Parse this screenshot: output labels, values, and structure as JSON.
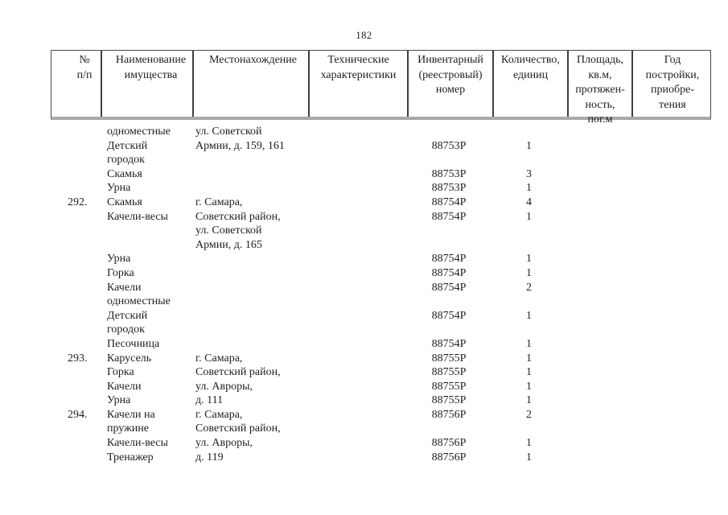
{
  "page": {
    "number": "182"
  },
  "colors": {
    "background": "#ffffff",
    "text": "#1f1f1f",
    "border_thin": "#3f3f3f",
    "border_thick": "#a9a9a9"
  },
  "table": {
    "columns": [
      {
        "id": "num",
        "label": "№\nп/п"
      },
      {
        "id": "name",
        "label": "Наименование\nимущества"
      },
      {
        "id": "location",
        "label": "Местонахождение"
      },
      {
        "id": "tech",
        "label": "Технические\nхарактеристики"
      },
      {
        "id": "inventory",
        "label": "Инвентарный\n(реестровый)\nномер"
      },
      {
        "id": "qty",
        "label": "Количество,\nединиц"
      },
      {
        "id": "area",
        "label": "Площадь,\nкв.м,\nпротяжен-\nность,\nпог.м"
      },
      {
        "id": "year",
        "label": "Год\nпостройки,\nприобре-\nтения"
      }
    ],
    "rows": [
      {
        "num": "",
        "name": "одноместные",
        "location": "ул. Советской",
        "tech": "",
        "inventory": "",
        "qty": "",
        "area": "",
        "year": ""
      },
      {
        "num": "",
        "name": "Детский",
        "location": "Армии, д. 159, 161",
        "tech": "",
        "inventory": "88753Р",
        "qty": "1",
        "area": "",
        "year": ""
      },
      {
        "num": "",
        "name": "городок",
        "location": "",
        "tech": "",
        "inventory": "",
        "qty": "",
        "area": "",
        "year": ""
      },
      {
        "num": "",
        "name": "Скамья",
        "location": "",
        "tech": "",
        "inventory": "88753Р",
        "qty": "3",
        "area": "",
        "year": ""
      },
      {
        "num": "",
        "name": "Урна",
        "location": "",
        "tech": "",
        "inventory": "88753Р",
        "qty": "1",
        "area": "",
        "year": ""
      },
      {
        "num": "292.",
        "name": "Скамья",
        "location": "г. Самара,",
        "tech": "",
        "inventory": "88754Р",
        "qty": "4",
        "area": "",
        "year": ""
      },
      {
        "num": "",
        "name": "Качели-весы",
        "location": "Советский район,",
        "tech": "",
        "inventory": "88754Р",
        "qty": "1",
        "area": "",
        "year": ""
      },
      {
        "num": "",
        "name": "",
        "location": "ул. Советской",
        "tech": "",
        "inventory": "",
        "qty": "",
        "area": "",
        "year": ""
      },
      {
        "num": "",
        "name": "",
        "location": "Армии, д. 165",
        "tech": "",
        "inventory": "",
        "qty": "",
        "area": "",
        "year": ""
      },
      {
        "num": "",
        "name": "Урна",
        "location": "",
        "tech": "",
        "inventory": "88754Р",
        "qty": "1",
        "area": "",
        "year": ""
      },
      {
        "num": "",
        "name": "Горка",
        "location": "",
        "tech": "",
        "inventory": "88754Р",
        "qty": "1",
        "area": "",
        "year": ""
      },
      {
        "num": "",
        "name": "Качели",
        "location": "",
        "tech": "",
        "inventory": "88754Р",
        "qty": "2",
        "area": "",
        "year": ""
      },
      {
        "num": "",
        "name": "одноместные",
        "location": "",
        "tech": "",
        "inventory": "",
        "qty": "",
        "area": "",
        "year": ""
      },
      {
        "num": "",
        "name": "Детский",
        "location": "",
        "tech": "",
        "inventory": "88754Р",
        "qty": "1",
        "area": "",
        "year": ""
      },
      {
        "num": "",
        "name": "городок",
        "location": "",
        "tech": "",
        "inventory": "",
        "qty": "",
        "area": "",
        "year": ""
      },
      {
        "num": "",
        "name": "Песочница",
        "location": "",
        "tech": "",
        "inventory": "88754Р",
        "qty": "1",
        "area": "",
        "year": ""
      },
      {
        "num": "293.",
        "name": "Карусель",
        "location": "г. Самара,",
        "tech": "",
        "inventory": "88755Р",
        "qty": "1",
        "area": "",
        "year": ""
      },
      {
        "num": "",
        "name": "Горка",
        "location": "Советский район,",
        "tech": "",
        "inventory": "88755Р",
        "qty": "1",
        "area": "",
        "year": ""
      },
      {
        "num": "",
        "name": "Качели",
        "location": "ул. Авроры,",
        "tech": "",
        "inventory": "88755Р",
        "qty": "1",
        "area": "",
        "year": ""
      },
      {
        "num": "",
        "name": "Урна",
        "location": "д. 111",
        "tech": "",
        "inventory": "88755Р",
        "qty": "1",
        "area": "",
        "year": ""
      },
      {
        "num": "294.",
        "name": "Качели на",
        "location": "г. Самара,",
        "tech": "",
        "inventory": "88756Р",
        "qty": "2",
        "area": "",
        "year": ""
      },
      {
        "num": "",
        "name": "пружине",
        "location": "Советский район,",
        "tech": "",
        "inventory": "",
        "qty": "",
        "area": "",
        "year": ""
      },
      {
        "num": "",
        "name": "Качели-весы",
        "location": "ул. Авроры,",
        "tech": "",
        "inventory": "88756Р",
        "qty": "1",
        "area": "",
        "year": ""
      },
      {
        "num": "",
        "name": "Тренажер",
        "location": "д. 119",
        "tech": "",
        "inventory": "88756Р",
        "qty": "1",
        "area": "",
        "year": ""
      }
    ]
  }
}
